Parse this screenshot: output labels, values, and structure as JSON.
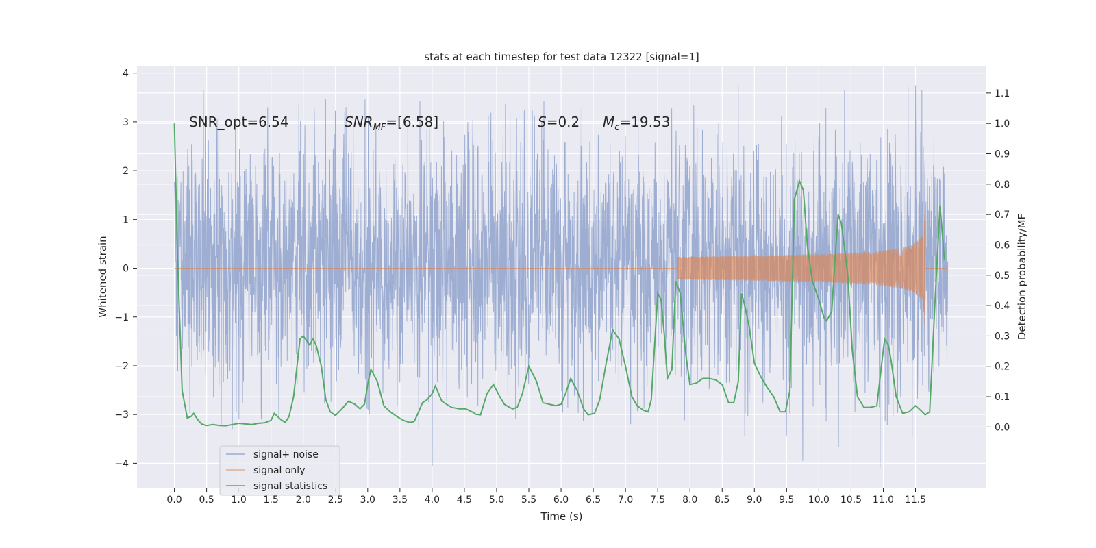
{
  "chart_data": {
    "type": "line",
    "title": "stats at each timestep for test data 12322 [signal=1]",
    "xlabel": "Time (s)",
    "ylabel_left": "Whitened strain",
    "ylabel_right": "Detection probability/MF",
    "xlim": [
      -0.58,
      12.6
    ],
    "ylim_left": [
      -4.5,
      4.15
    ],
    "ylim_right": [
      -0.2,
      1.19
    ],
    "x_ticks": [
      0.0,
      0.5,
      1.0,
      1.5,
      2.0,
      2.5,
      3.0,
      3.5,
      4.0,
      4.5,
      5.0,
      5.5,
      6.0,
      6.5,
      7.0,
      7.5,
      8.0,
      8.5,
      9.0,
      9.5,
      10.0,
      10.5,
      11.0,
      11.5
    ],
    "x_tick_labels": [
      "0.0",
      "0.5",
      "1.0",
      "1.5",
      "2.0",
      "2.5",
      "3.0",
      "3.5",
      "4.0",
      "4.5",
      "5.0",
      "5.5",
      "6.0",
      "6.5",
      "7.0",
      "7.5",
      "8.0",
      "8.5",
      "9.0",
      "9.5",
      "10.0",
      "10.5",
      "11.0",
      "11.5"
    ],
    "y_ticks_left": [
      4,
      3,
      2,
      1,
      0,
      -1,
      -2,
      -3,
      -4
    ],
    "y_tick_labels_left": [
      "4",
      "3",
      "2",
      "1",
      "0",
      "−1",
      "−2",
      "−3",
      "−4"
    ],
    "y_ticks_right": [
      1.1,
      1.0,
      0.9,
      0.8,
      0.7,
      0.6,
      0.5,
      0.4,
      0.3,
      0.2,
      0.1,
      0.0
    ],
    "y_tick_labels_right": [
      "1.1",
      "1.0",
      "0.9",
      "0.8",
      "0.7",
      "0.6",
      "0.5",
      "0.4",
      "0.3",
      "0.2",
      "0.1",
      "0.0"
    ],
    "annotations": {
      "snr_opt": "SNR_opt=6.54",
      "snr_mf_main": "SNR",
      "snr_mf_sub": "MF",
      "snr_mf_value": "=[6.58]",
      "s_symbol": "S",
      "s_value": "=0.2",
      "mc_main": "M",
      "mc_sub": "c",
      "mc_value": "=19.53"
    },
    "legend": {
      "placement": "lower-left",
      "entries": [
        "signal+ noise",
        "signal only",
        "signal statistics"
      ]
    },
    "grid": true,
    "colors": {
      "background": "#eaeaf2",
      "grid": "#ffffff",
      "noise": "#9aabd1",
      "signal": "#dd8452",
      "statistics": "#55a868",
      "text": "#262626"
    },
    "series": [
      {
        "name": "signal+ noise",
        "axis": "left",
        "t_range": [
          0.0,
          12.0
        ],
        "envelope_typical": [
          -1.4,
          1.65
        ],
        "extremes": [
          {
            "t": 0.45,
            "y": 3.65
          },
          {
            "t": 1.0,
            "y": -3.1
          },
          {
            "t": 1.35,
            "y": -3.1
          },
          {
            "t": 4.0,
            "y": -4.05
          },
          {
            "t": 8.75,
            "y": 3.75
          },
          {
            "t": 9.5,
            "y": -3.45
          },
          {
            "t": 9.75,
            "y": -3.95
          },
          {
            "t": 10.3,
            "y": -3.0
          },
          {
            "t": 10.4,
            "y": 3.65
          },
          {
            "t": 10.95,
            "y": -4.1
          },
          {
            "t": 11.5,
            "y": 3.75
          },
          {
            "t": 11.6,
            "y": 3.65
          }
        ]
      },
      {
        "name": "signal only",
        "axis": "left",
        "chirp": {
          "t_start": 7.8,
          "t_merge": 11.65,
          "t_end": 12.0,
          "peak_amplitude": 1.45
        }
      },
      {
        "name": "signal statistics",
        "axis": "right",
        "t": [
          0.0,
          0.05,
          0.12,
          0.2,
          0.26,
          0.3,
          0.36,
          0.42,
          0.5,
          0.6,
          0.7,
          0.8,
          0.9,
          1.0,
          1.1,
          1.2,
          1.3,
          1.4,
          1.5,
          1.55,
          1.65,
          1.72,
          1.78,
          1.85,
          1.95,
          2.0,
          2.1,
          2.15,
          2.2,
          2.28,
          2.35,
          2.42,
          2.5,
          2.6,
          2.7,
          2.8,
          2.88,
          2.95,
          3.0,
          3.05,
          3.15,
          3.25,
          3.35,
          3.45,
          3.55,
          3.65,
          3.72,
          3.78,
          3.85,
          3.92,
          4.0,
          4.05,
          4.15,
          4.3,
          4.42,
          4.52,
          4.62,
          4.68,
          4.75,
          4.85,
          4.95,
          5.05,
          5.12,
          5.2,
          5.25,
          5.32,
          5.4,
          5.5,
          5.62,
          5.72,
          5.82,
          5.92,
          6.0,
          6.07,
          6.15,
          6.25,
          6.35,
          6.42,
          6.52,
          6.6,
          6.7,
          6.8,
          6.9,
          7.0,
          7.1,
          7.18,
          7.28,
          7.35,
          7.4,
          7.5,
          7.55,
          7.6,
          7.65,
          7.72,
          7.78,
          7.85,
          7.93,
          8.0,
          8.1,
          8.2,
          8.3,
          8.4,
          8.5,
          8.6,
          8.68,
          8.75,
          8.8,
          8.85,
          8.92,
          9.0,
          9.1,
          9.2,
          9.3,
          9.4,
          9.48,
          9.55,
          9.62,
          9.7,
          9.76,
          9.82,
          9.9,
          10.0,
          10.08,
          10.12,
          10.2,
          10.25,
          10.3,
          10.35,
          10.45,
          10.52,
          10.6,
          10.7,
          10.8,
          10.9,
          10.96,
          11.02,
          11.08,
          11.12,
          11.2,
          11.3,
          11.4,
          11.5,
          11.58,
          11.65,
          11.72,
          11.8,
          11.88,
          11.95
        ],
        "values": [
          1.0,
          0.55,
          0.12,
          0.03,
          0.035,
          0.045,
          0.025,
          0.01,
          0.005,
          0.008,
          0.005,
          0.004,
          0.008,
          0.012,
          0.01,
          0.008,
          0.012,
          0.014,
          0.022,
          0.045,
          0.025,
          0.015,
          0.035,
          0.1,
          0.29,
          0.3,
          0.27,
          0.29,
          0.27,
          0.2,
          0.09,
          0.05,
          0.038,
          0.06,
          0.085,
          0.075,
          0.06,
          0.075,
          0.14,
          0.19,
          0.15,
          0.07,
          0.05,
          0.035,
          0.022,
          0.015,
          0.018,
          0.045,
          0.08,
          0.09,
          0.11,
          0.135,
          0.085,
          0.065,
          0.06,
          0.06,
          0.05,
          0.042,
          0.04,
          0.11,
          0.14,
          0.1,
          0.075,
          0.065,
          0.06,
          0.065,
          0.11,
          0.2,
          0.15,
          0.08,
          0.075,
          0.07,
          0.075,
          0.11,
          0.16,
          0.12,
          0.06,
          0.04,
          0.045,
          0.09,
          0.21,
          0.32,
          0.29,
          0.2,
          0.1,
          0.07,
          0.055,
          0.05,
          0.09,
          0.44,
          0.42,
          0.31,
          0.16,
          0.19,
          0.48,
          0.44,
          0.25,
          0.14,
          0.145,
          0.16,
          0.16,
          0.155,
          0.14,
          0.08,
          0.08,
          0.15,
          0.44,
          0.4,
          0.33,
          0.21,
          0.165,
          0.13,
          0.1,
          0.05,
          0.05,
          0.12,
          0.75,
          0.81,
          0.78,
          0.6,
          0.48,
          0.42,
          0.36,
          0.35,
          0.38,
          0.55,
          0.7,
          0.67,
          0.5,
          0.25,
          0.1,
          0.065,
          0.065,
          0.07,
          0.18,
          0.29,
          0.27,
          0.22,
          0.1,
          0.045,
          0.05,
          0.07,
          0.055,
          0.04,
          0.05,
          0.4,
          0.73,
          0.55
        ]
      }
    ]
  }
}
